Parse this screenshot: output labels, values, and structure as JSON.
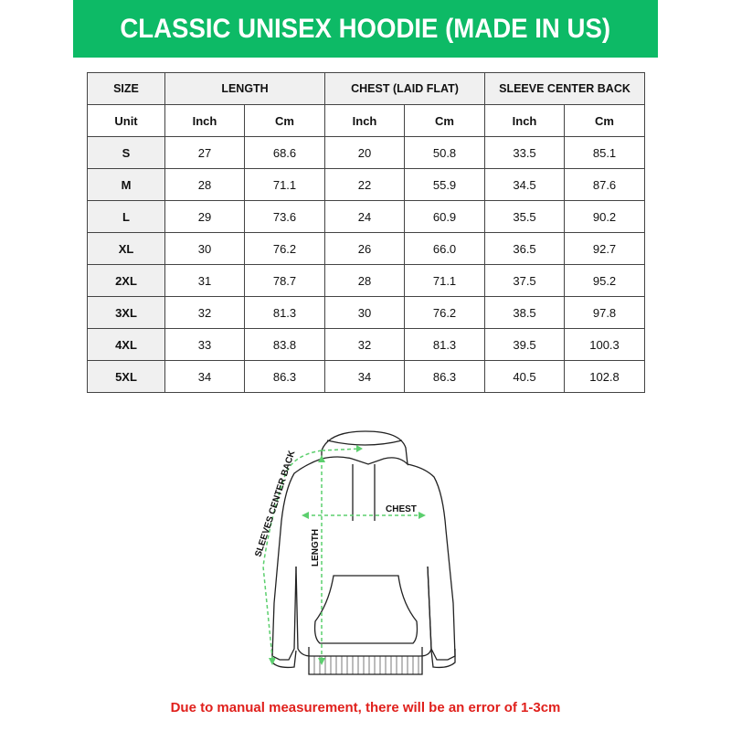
{
  "title": "CLASSIC UNISEX HOODIE (MADE IN US)",
  "table": {
    "group_headers": [
      "SIZE",
      "LENGTH",
      "CHEST (LAID FLAT)",
      "SLEEVE CENTER BACK"
    ],
    "unit_row": [
      "Unit",
      "Inch",
      "Cm",
      "Inch",
      "Cm",
      "Inch",
      "Cm"
    ],
    "rows": [
      [
        "S",
        "27",
        "68.6",
        "20",
        "50.8",
        "33.5",
        "85.1"
      ],
      [
        "M",
        "28",
        "71.1",
        "22",
        "55.9",
        "34.5",
        "87.6"
      ],
      [
        "L",
        "29",
        "73.6",
        "24",
        "60.9",
        "35.5",
        "90.2"
      ],
      [
        "XL",
        "30",
        "76.2",
        "26",
        "66.0",
        "36.5",
        "92.7"
      ],
      [
        "2XL",
        "31",
        "78.7",
        "28",
        "71.1",
        "37.5",
        "95.2"
      ],
      [
        "3XL",
        "32",
        "81.3",
        "30",
        "76.2",
        "38.5",
        "97.8"
      ],
      [
        "4XL",
        "33",
        "83.8",
        "32",
        "81.3",
        "39.5",
        "100.3"
      ],
      [
        "5XL",
        "34",
        "86.3",
        "34",
        "86.3",
        "40.5",
        "102.8"
      ]
    ]
  },
  "diagram": {
    "chest_label": "CHEST",
    "length_label": "LENGTH",
    "sleeve_label": "SLEEVES CENTER BACK"
  },
  "footer_note": "Due to manual measurement, there will be an error of 1-3cm",
  "colors": {
    "banner": "#0dba66",
    "measure_lines": "#5ccf6e",
    "note": "#e0201c"
  }
}
